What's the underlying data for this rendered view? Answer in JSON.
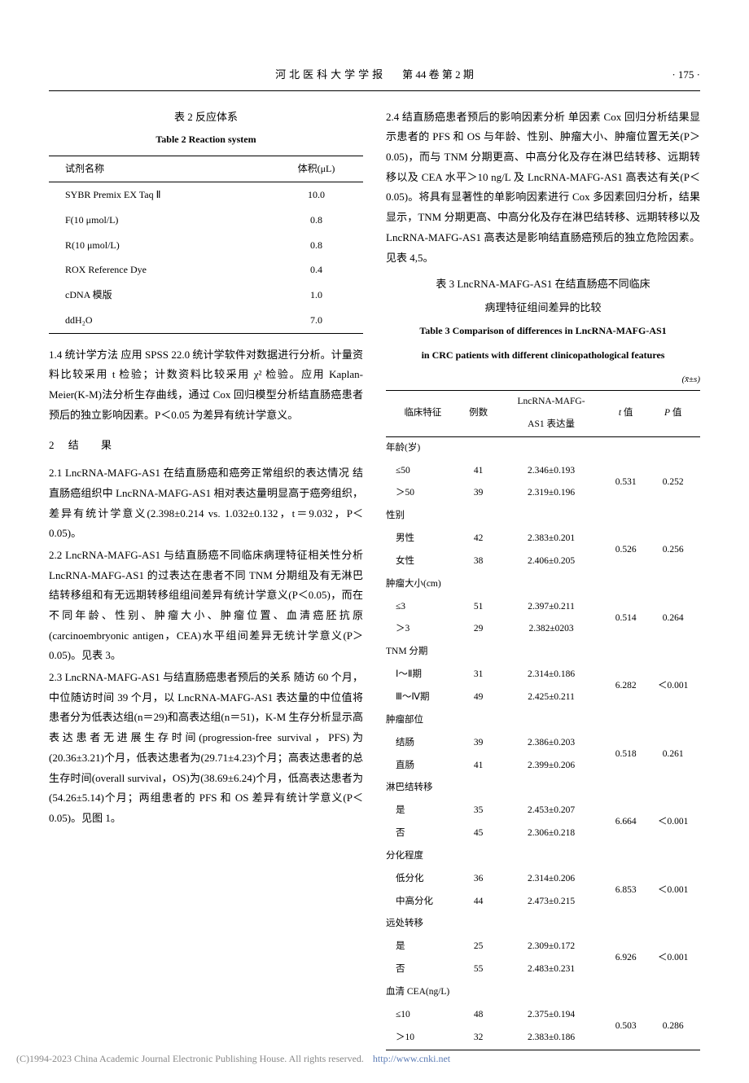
{
  "header": {
    "journal": "河北医科大学学报",
    "issue": "第 44 卷  第 2 期",
    "page": "· 175 ·"
  },
  "table2": {
    "caption_cn": "表 2  反应体系",
    "caption_en": "Table 2  Reaction system",
    "columns": [
      "试剂名称",
      "体积(μL)"
    ],
    "rows": [
      [
        "SYBR Premix EX Taq Ⅱ",
        "10.0"
      ],
      [
        "F(10 μmol/L)",
        "0.8"
      ],
      [
        "R(10 μmol/L)",
        "0.8"
      ],
      [
        "ROX Reference Dye",
        "0.4"
      ],
      [
        "cDNA 模版",
        "1.0"
      ],
      [
        "ddH₂O",
        "7.0"
      ]
    ]
  },
  "col1": {
    "p14": "1.4  统计学方法  应用 SPSS 22.0 统计学软件对数据进行分析。计量资料比较采用 t 检验；计数资料比较采用 χ² 检验。应用 Kaplan-Meier(K-M)法分析生存曲线，通过 Cox 回归模型分析结直肠癌患者预后的独立影响因素。P＜0.05 为差异有统计学意义。",
    "sec2_num": "2",
    "sec2_title": "结    果",
    "p21": "2.1  LncRNA-MAFG-AS1 在结直肠癌和癌旁正常组织的表达情况  结直肠癌组织中 LncRNA-MAFG-AS1 相对表达量明显高于癌旁组织，差异有统计学意义(2.398±0.214 vs. 1.032±0.132，t＝9.032，P＜0.05)。",
    "p22": "2.2  LncRNA-MAFG-AS1 与结直肠癌不同临床病理特征相关性分析  LncRNA-MAFG-AS1 的过表达在患者不同 TNM 分期组及有无淋巴结转移组和有无远期转移组组间差异有统计学意义(P＜0.05)，而在不同年龄、性别、肿瘤大小、肿瘤位置、血清癌胚抗原(carcinoembryonic antigen，CEA)水平组间差异无统计学意义(P＞0.05)。见表 3。",
    "p23": "2.3  LncRNA-MAFG-AS1 与结直肠癌患者预后的关系  随访 60 个月，中位随访时间 39 个月，以 LncRNA-MAFG-AS1 表达量的中位值将患者分为低表达组(n＝29)和高表达组(n＝51)，K-M 生存分析显示高表达患者无进展生存时间(progression-free survival，PFS)为(20.36±3.21)个月，低表达患者为(29.71±4.23)个月；高表达患者的总生存时间(overall survival，OS)为(38.69±6.24)个月，低高表达患者为(54.26±5.14)个月；两组患者的 PFS 和 OS 差异有统计学意义(P＜0.05)。见图 1。"
  },
  "col2": {
    "p24": "2.4  结直肠癌患者预后的影响因素分析  单因素 Cox 回归分析结果显示患者的 PFS 和 OS 与年龄、性别、肿瘤大小、肿瘤位置无关(P＞0.05)，而与 TNM 分期更高、中高分化及存在淋巴结转移、远期转移以及 CEA 水平＞10 ng/L 及 LncRNA-MAFG-AS1 高表达有关(P＜0.05)。将具有显著性的单影响因素进行 Cox 多因素回归分析，结果显示，TNM 分期更高、中高分化及存在淋巴结转移、远期转移以及 LncRNA-MAFG-AS1 高表达是影响结直肠癌预后的独立危险因素。见表 4,5。"
  },
  "table3": {
    "caption_cn_l1": "表 3  LncRNA-MAFG-AS1 在结直肠癌不同临床",
    "caption_cn_l2": "病理特征组间差异的比较",
    "caption_en_l1": "Table 3  Comparison of differences in LncRNA-MAFG-AS1",
    "caption_en_l2": "in CRC patients with different clinicopathological features",
    "xbar": "(x̄±s)",
    "columns": [
      "临床特征",
      "例数",
      "LncRNA-MAFG-AS1 表达量",
      "t 值",
      "P 值"
    ],
    "groups": [
      {
        "head": "年龄(岁)",
        "rows": [
          [
            "≤50",
            "41",
            "2.346±0.193"
          ],
          [
            "＞50",
            "39",
            "2.319±0.196"
          ]
        ],
        "t": "0.531",
        "p": "0.252"
      },
      {
        "head": "性别",
        "rows": [
          [
            "男性",
            "42",
            "2.383±0.201"
          ],
          [
            "女性",
            "38",
            "2.406±0.205"
          ]
        ],
        "t": "0.526",
        "p": "0.256"
      },
      {
        "head": "肿瘤大小(cm)",
        "rows": [
          [
            "≤3",
            "51",
            "2.397±0.211"
          ],
          [
            "＞3",
            "29",
            "2.382±0203"
          ]
        ],
        "t": "0.514",
        "p": "0.264"
      },
      {
        "head": "TNM 分期",
        "rows": [
          [
            "Ⅰ～Ⅱ期",
            "31",
            "2.314±0.186"
          ],
          [
            "Ⅲ～Ⅳ期",
            "49",
            "2.425±0.211"
          ]
        ],
        "t": "6.282",
        "p": "＜0.001"
      },
      {
        "head": "肿瘤部位",
        "rows": [
          [
            "结肠",
            "39",
            "2.386±0.203"
          ],
          [
            "直肠",
            "41",
            "2.399±0.206"
          ]
        ],
        "t": "0.518",
        "p": "0.261"
      },
      {
        "head": "淋巴结转移",
        "rows": [
          [
            "是",
            "35",
            "2.453±0.207"
          ],
          [
            "否",
            "45",
            "2.306±0.218"
          ]
        ],
        "t": "6.664",
        "p": "＜0.001"
      },
      {
        "head": "分化程度",
        "rows": [
          [
            "低分化",
            "36",
            "2.314±0.206"
          ],
          [
            "中高分化",
            "44",
            "2.473±0.215"
          ]
        ],
        "t": "6.853",
        "p": "＜0.001"
      },
      {
        "head": "远处转移",
        "rows": [
          [
            "是",
            "25",
            "2.309±0.172"
          ],
          [
            "否",
            "55",
            "2.483±0.231"
          ]
        ],
        "t": "6.926",
        "p": "＜0.001"
      },
      {
        "head": "血清 CEA(ng/L)",
        "rows": [
          [
            "≤10",
            "48",
            "2.375±0.194"
          ],
          [
            "＞10",
            "32",
            "2.383±0.186"
          ]
        ],
        "t": "0.503",
        "p": "0.286"
      }
    ]
  },
  "footer": {
    "text": "(C)1994-2023 China Academic Journal Electronic Publishing House. All rights reserved.",
    "link": "http://www.cnki.net"
  }
}
